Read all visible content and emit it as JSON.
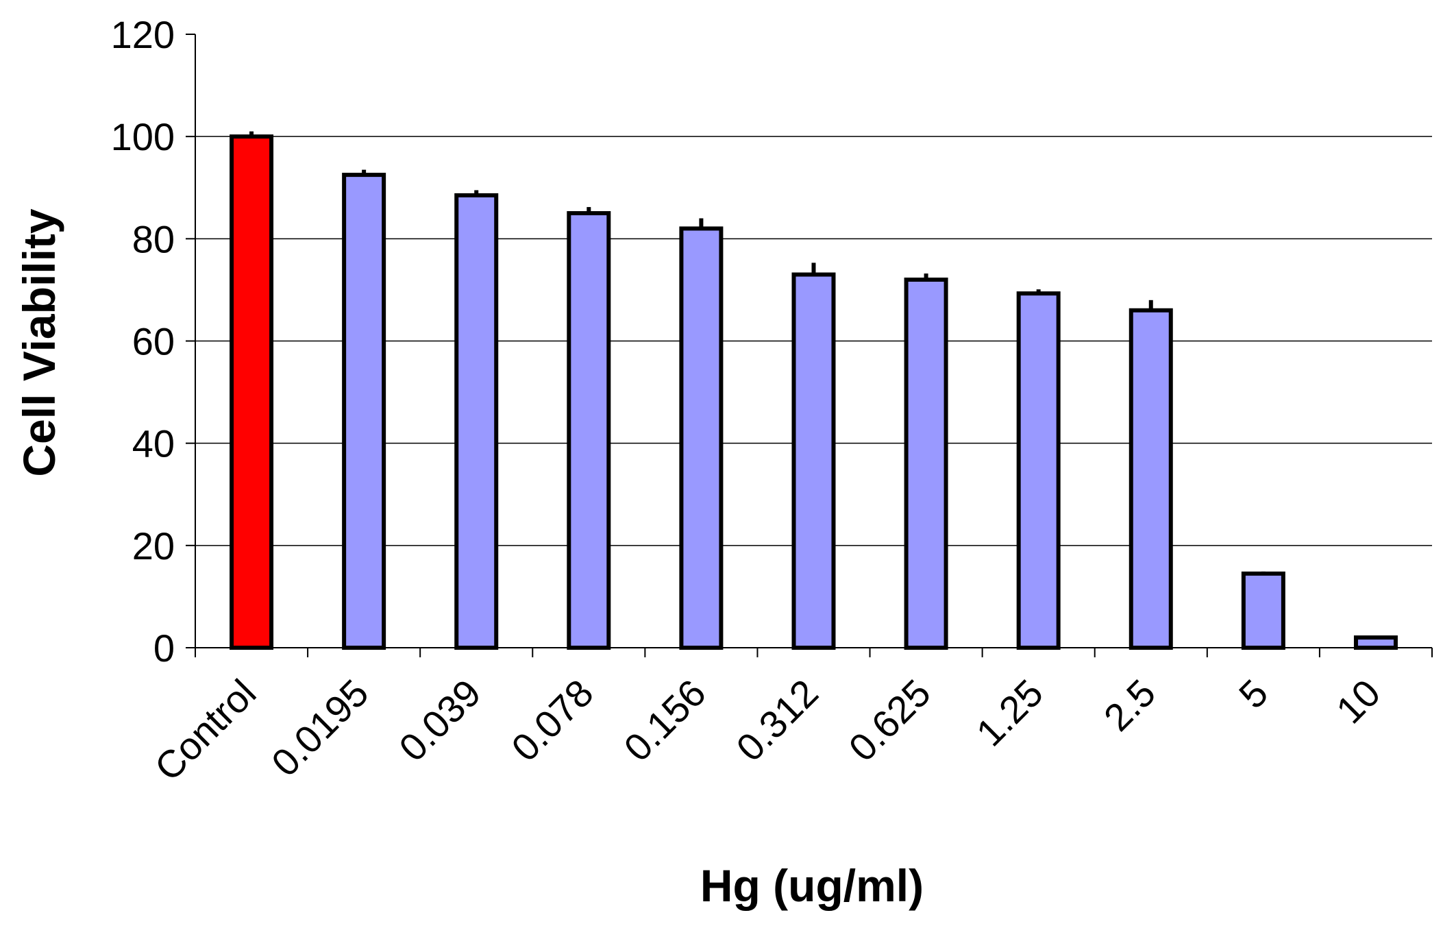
{
  "chart_data": {
    "type": "bar",
    "title": "",
    "xlabel": "Hg (ug/ml)",
    "ylabel": "Cell Viability",
    "categories": [
      "Control",
      "0.0195",
      "0.039",
      "0.078",
      "0.156",
      "0.312",
      "0.625",
      "1.25",
      "2.5",
      "5",
      "10"
    ],
    "values": [
      100,
      92.5,
      88.5,
      85,
      82,
      73,
      72,
      69.3,
      66,
      14.5,
      2
    ],
    "errors": [
      1,
      1,
      1,
      1.2,
      2,
      2.3,
      1.2,
      0.8,
      2,
      0.4,
      0.3
    ],
    "ylim": [
      0,
      120
    ],
    "yticks": [
      0,
      20,
      40,
      60,
      80,
      100,
      120
    ],
    "grid": true,
    "legend": "none",
    "colors": {
      "control": "#ff0000",
      "treatment": "#9999ff",
      "outline": "#000000",
      "grid": "#000000"
    }
  }
}
